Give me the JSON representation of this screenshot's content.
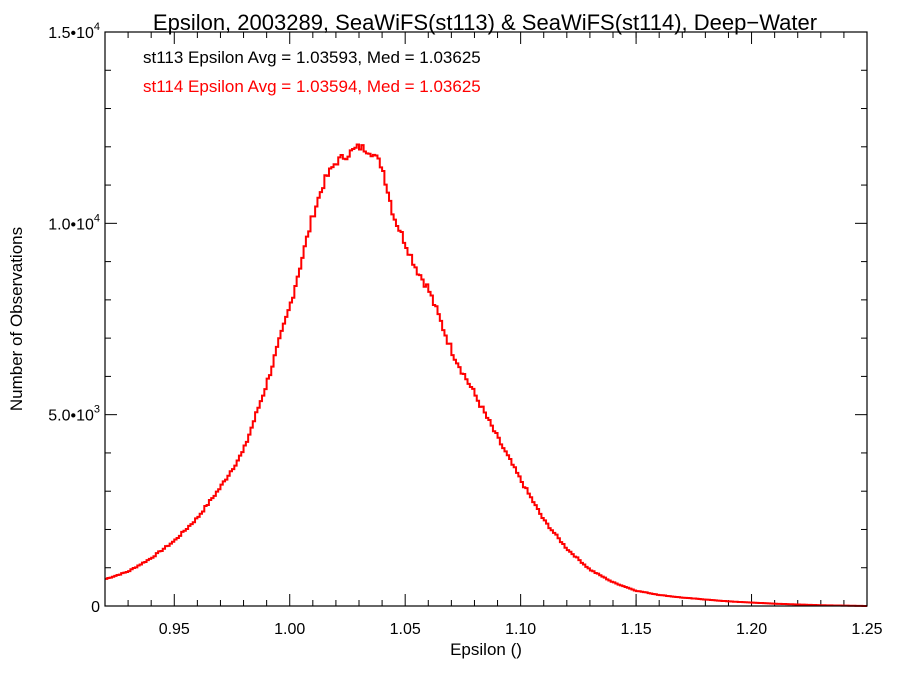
{
  "chart_data": {
    "type": "line",
    "title": "Epsilon, 2003289, SeaWiFS(st113) & SeaWiFS(st114), Deep−Water",
    "xlabel": "Epsilon ()",
    "ylabel": "Number of Observations",
    "xlim": [
      0.92,
      1.25
    ],
    "ylim": [
      0,
      15000
    ],
    "x_ticks": [
      {
        "value": 0.95,
        "label": "0.95"
      },
      {
        "value": 1.0,
        "label": "1.00"
      },
      {
        "value": 1.05,
        "label": "1.05"
      },
      {
        "value": 1.1,
        "label": "1.10"
      },
      {
        "value": 1.15,
        "label": "1.15"
      },
      {
        "value": 1.2,
        "label": "1.20"
      },
      {
        "value": 1.25,
        "label": "1.25"
      }
    ],
    "y_ticks": [
      {
        "value": 0,
        "mantissa": "0",
        "exponent": ""
      },
      {
        "value": 5000,
        "mantissa": "5.0•10",
        "exponent": "3"
      },
      {
        "value": 10000,
        "mantissa": "1.0•10",
        "exponent": "4"
      },
      {
        "value": 15000,
        "mantissa": "1.5•10",
        "exponent": "4"
      }
    ],
    "annotations": [
      {
        "text": "st113 Epsilon Avg = 1.03593, Med = 1.03625",
        "color": "#000000"
      },
      {
        "text": "st114 Epsilon Avg = 1.03594, Med = 1.03625",
        "color": "#ff0000"
      }
    ],
    "series": [
      {
        "color": "#ff0000",
        "x": [
          0.92,
          0.93,
          0.94,
          0.95,
          0.96,
          0.97,
          0.98,
          0.99,
          1.0,
          1.005,
          1.01,
          1.015,
          1.02,
          1.025,
          1.03,
          1.035,
          1.04,
          1.045,
          1.05,
          1.055,
          1.06,
          1.065,
          1.07,
          1.075,
          1.08,
          1.09,
          1.1,
          1.11,
          1.12,
          1.13,
          1.14,
          1.15,
          1.16,
          1.17,
          1.18,
          1.19,
          1.2,
          1.21,
          1.22,
          1.23,
          1.24,
          1.25
        ],
        "y": [
          700,
          900,
          1250,
          1700,
          2300,
          3100,
          4050,
          5800,
          7800,
          9000,
          10200,
          11100,
          11600,
          11800,
          12000,
          11900,
          11500,
          10200,
          9500,
          8800,
          8300,
          7500,
          6700,
          6100,
          5550,
          4400,
          3300,
          2250,
          1500,
          950,
          620,
          400,
          290,
          220,
          170,
          120,
          90,
          60,
          40,
          20,
          10,
          0
        ]
      }
    ]
  }
}
